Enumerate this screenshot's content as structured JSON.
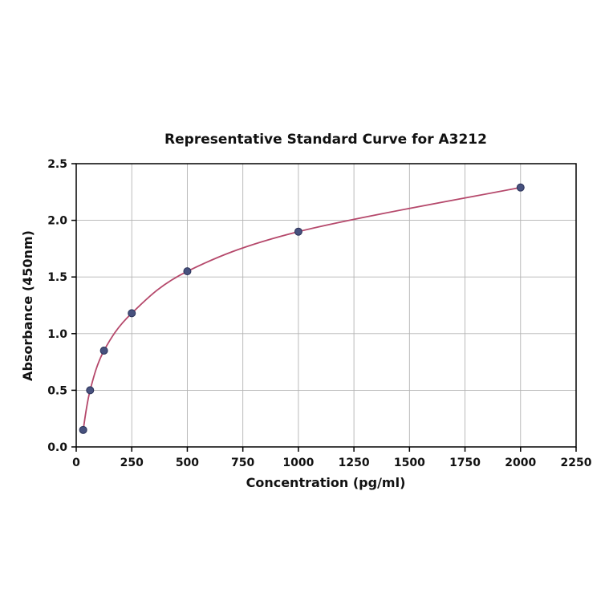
{
  "chart_data": {
    "type": "line",
    "title": "Representative Standard Curve for A3212",
    "xlabel": "Concentration (pg/ml)",
    "ylabel": "Absorbance (450nm)",
    "x": [
      31.25,
      62.5,
      125,
      250,
      500,
      1000,
      2000
    ],
    "y": [
      0.15,
      0.5,
      0.85,
      1.18,
      1.55,
      1.9,
      2.29
    ],
    "xlim": [
      0,
      2250
    ],
    "ylim": [
      0,
      2.5
    ],
    "xtick_values": [
      0,
      250,
      500,
      750,
      1000,
      1250,
      1500,
      1750,
      2000,
      2250
    ],
    "xtick_labels": [
      "0",
      "250",
      "500",
      "750",
      "1000",
      "1250",
      "1500",
      "1750",
      "2000",
      "2250"
    ],
    "ytick_values": [
      0.0,
      0.5,
      1.0,
      1.5,
      2.0,
      2.5
    ],
    "ytick_labels": [
      "0.0",
      "0.5",
      "1.0",
      "1.5",
      "2.0",
      "2.5"
    ],
    "grid": "on",
    "legend": "none",
    "colors": {
      "line": "#b5486b",
      "marker_fill": "#47517e",
      "marker_edge": "#2b3258",
      "grid": "#b3b3b3",
      "axis": "#000000",
      "background": "#ffffff"
    }
  }
}
